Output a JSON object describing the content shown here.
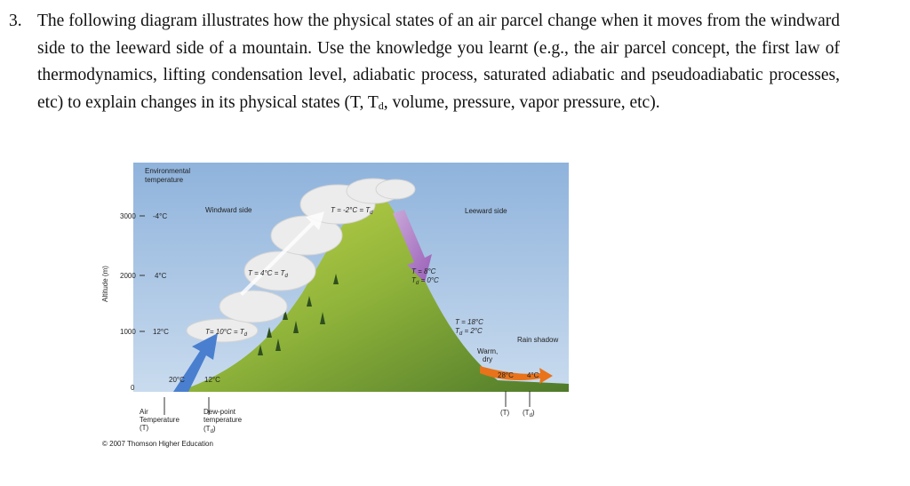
{
  "question": {
    "number": "3.",
    "text_before": "The following diagram illustrates how the physical states of an air parcel change when it moves from the windward side to the leeward side of a mountain. Use the knowledge you learnt (e.g., the air parcel concept, the first law of thermodynamics, lifting condensation level, adiabatic process, saturated adiabatic and pseudoadiabatic processes, etc) to explain changes in its physical states (T, T",
    "subscript": "d",
    "text_after": ", volume, pressure, vapor pressure, etc)."
  },
  "diagram": {
    "env_temp_label": [
      "Environmental",
      "temperature"
    ],
    "axis_label": "Altitude (m)",
    "altitudes": [
      "3000",
      "2000",
      "1000",
      "0"
    ],
    "env_temps": [
      "-4°C",
      "4°C",
      "12°C"
    ],
    "windward": "Windward side",
    "leeward": "Leeward side",
    "peak_state": {
      "text": "T = -2°C = T",
      "sub": "d"
    },
    "mid_state": {
      "text": "T = 4°C = T",
      "sub": "d"
    },
    "lcl_state": {
      "text": "T= 10°C = T",
      "sub": "d"
    },
    "leeward_upper": {
      "line1": "T = 8°C",
      "line2": "T",
      "line2_sub": "d",
      "line2_rest": " = 0°C"
    },
    "leeward_lower": {
      "line1": "T = 18°C",
      "line2": "T",
      "line2_sub": "d",
      "line2_rest": " = 2°C"
    },
    "base_temps": [
      "20°C",
      "12°C"
    ],
    "rain_shadow": "Rain shadow",
    "warm_dry": [
      "Warm,",
      "dry"
    ],
    "lee_temps": [
      "28°C",
      "4°C"
    ],
    "air_temp_label": [
      "Air",
      "Temperature",
      "(T)"
    ],
    "dew_label": {
      "lines": [
        "Dew-point",
        "temperature"
      ],
      "symbol": "(T",
      "sub": "d",
      "close": ")"
    },
    "lee_symbols": {
      "t": "(T)",
      "td": "(T",
      "sub": "d",
      "close": ")"
    },
    "copyright": "© 2007 Thomson Higher Education"
  }
}
